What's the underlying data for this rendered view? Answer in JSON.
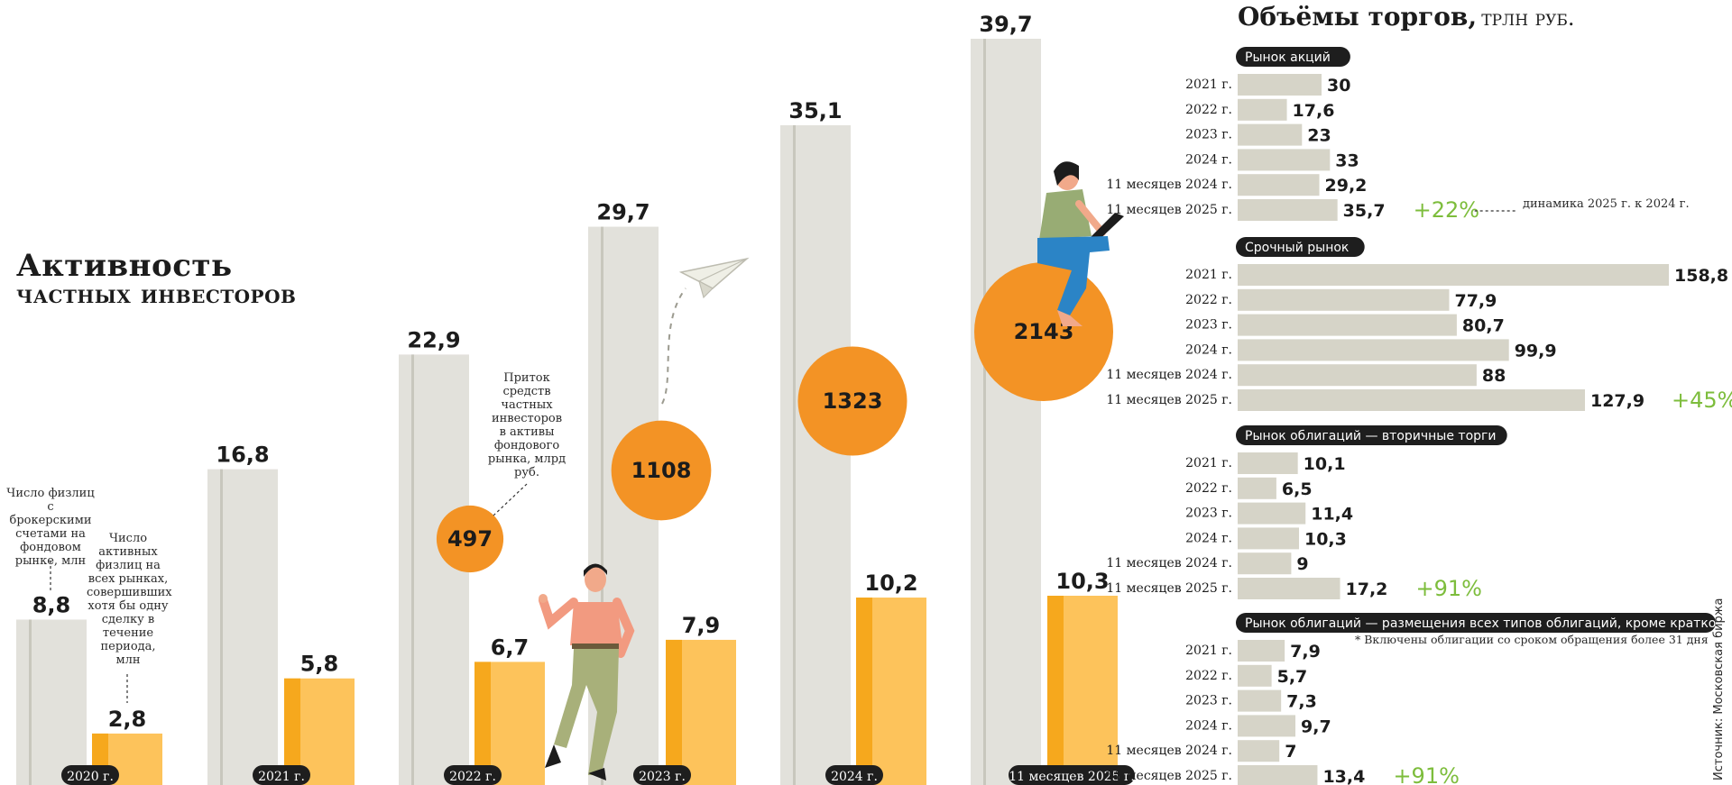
{
  "title": {
    "line1": "Активность",
    "line2": "частных инвесторов"
  },
  "notes": {
    "accounts": "Число физлиц с брокерскими счетами на фондовом рынке, млн",
    "active": "Число активных физлиц на всех рынках, совершивших хотя бы одну сделку в течение периода, млн",
    "inflow": "Приток средств частных инвесторов в активы фондового рынка, млрд руб."
  },
  "colors": {
    "gray_bar": "#e2e1db",
    "gray_stripe": "#c8c7bd",
    "orange_bar": "#fdc35b",
    "orange_stripe": "#f6a81d",
    "circle": "#f39325",
    "label_pill": "#1e1e1e",
    "green": "#7dbd3c",
    "hbar": "#d6d4c8"
  },
  "chart_data": [
    {
      "type": "bar",
      "categories": [
        "2020 г.",
        "2021 г.",
        "2022 г.",
        "2023 г.",
        "2024 г.",
        "11 месяцев 2025 г."
      ],
      "series": [
        {
          "name": "Число физлиц с брокерскими счетами на фондовом рынке, млн",
          "values": [
            8.8,
            16.8,
            22.9,
            29.7,
            35.1,
            39.7
          ],
          "labels": [
            "8,8",
            "16,8",
            "22,9",
            "29,7",
            "35,1",
            "39,7"
          ]
        },
        {
          "name": "Число активных физлиц на всех рынках, совершивших хотя бы одну сделку в течение периода, млн",
          "values": [
            2.8,
            5.8,
            6.7,
            7.9,
            10.2,
            10.3
          ],
          "labels": [
            "2,8",
            "5,8",
            "6,7",
            "7,9",
            "10,2",
            "10,3"
          ]
        },
        {
          "name": "Приток средств частных инвесторов в активы фондового рынка, млрд руб.",
          "values": [
            null,
            null,
            497,
            1108,
            1323,
            2143
          ],
          "labels": [
            "",
            "",
            "497",
            "1108",
            "1323",
            "2143"
          ]
        }
      ]
    },
    {
      "type": "bar",
      "orientation": "horizontal",
      "title": "Объёмы торгов,",
      "unit": "трлн руб.",
      "panels": [
        {
          "name": "Рынок акций",
          "categories": [
            "2021 г.",
            "2022 г.",
            "2023 г.",
            "2024 г.",
            "11 месяцев 2024 г.",
            "11 месяцев 2025 г."
          ],
          "values": [
            30,
            17.6,
            23,
            33,
            29.2,
            35.7
          ],
          "labels": [
            "30",
            "17,6",
            "23",
            "33",
            "29,2",
            "35,7"
          ],
          "change": "+22%"
        },
        {
          "name": "Срочный рынок",
          "categories": [
            "2021 г.",
            "2022 г.",
            "2023 г.",
            "2024 г.",
            "11 месяцев 2024 г.",
            "11 месяцев 2025 г."
          ],
          "values": [
            158.8,
            77.9,
            80.7,
            99.9,
            88,
            127.9
          ],
          "labels": [
            "158,8",
            "77,9",
            "80,7",
            "99,9",
            "88",
            "127,9"
          ],
          "change": "+45%"
        },
        {
          "name": "Рынок облигаций — вторичные торги",
          "categories": [
            "2021 г.",
            "2022 г.",
            "2023 г.",
            "2024 г.",
            "11 месяцев 2024 г.",
            "11 месяцев 2025 г."
          ],
          "values": [
            10.1,
            6.5,
            11.4,
            10.3,
            9,
            17.2
          ],
          "labels": [
            "10,1",
            "6,5",
            "11,4",
            "10,3",
            "9",
            "17,2"
          ],
          "change": "+91%"
        },
        {
          "name": "Рынок облигаций — размещения всех типов облигаций, кроме краткосрочных*",
          "categories": [
            "2021 г.",
            "2022 г.",
            "2023 г.",
            "2024 г.",
            "11 месяцев 2024 г.",
            "11 месяцев 2025 г."
          ],
          "values": [
            7.9,
            5.7,
            7.3,
            9.7,
            7,
            13.4
          ],
          "labels": [
            "7,9",
            "5,7",
            "7,3",
            "9,7",
            "7",
            "13,4"
          ],
          "change": "+91%"
        }
      ],
      "dynamics_label": "динамика 2025 г. к 2024 г.",
      "footnote": "* Включены облигации со сроком обращения более 31 дня"
    }
  ],
  "right": {
    "title": "Объёмы торгов,",
    "unit": "трлн руб."
  },
  "source": "Источник: Московская биржа"
}
